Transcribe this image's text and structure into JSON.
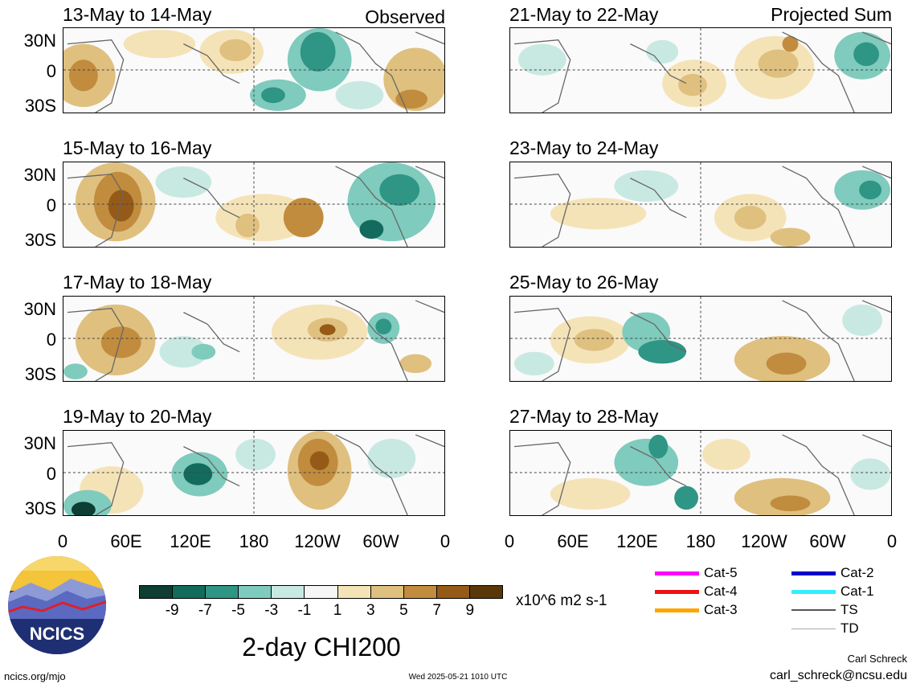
{
  "panels": [
    {
      "id": "p1",
      "title": "13-May to 14-May",
      "tag": "Observed"
    },
    {
      "id": "p2",
      "title": "15-May to 16-May",
      "tag": ""
    },
    {
      "id": "p3",
      "title": "17-May to 18-May",
      "tag": ""
    },
    {
      "id": "p4",
      "title": "19-May to 20-May",
      "tag": ""
    },
    {
      "id": "p5",
      "title": "21-May to 22-May",
      "tag": "Projected Sum"
    },
    {
      "id": "p6",
      "title": "23-May to 24-May",
      "tag": ""
    },
    {
      "id": "p7",
      "title": "25-May to 26-May",
      "tag": ""
    },
    {
      "id": "p8",
      "title": "27-May to 28-May",
      "tag": ""
    }
  ],
  "lat_ticks": [
    "30N",
    "0",
    "30S"
  ],
  "lon_ticks": [
    "0",
    "60E",
    "120E",
    "180",
    "120W",
    "60W",
    "0"
  ],
  "colorbar": {
    "ticks": [
      "-9",
      "-7",
      "-5",
      "-3",
      "-1",
      "1",
      "3",
      "5",
      "7",
      "9"
    ],
    "colors": [
      "#0d3d33",
      "#136b5d",
      "#2f9585",
      "#7fcbbd",
      "#c8e9e2",
      "#f5f5f5",
      "#f5e3b8",
      "#dfc07f",
      "#c18c3e",
      "#955a17",
      "#5a3708"
    ],
    "units": "x10^6 m2 s-1"
  },
  "legend": [
    {
      "label": "Cat-5",
      "color": "#ff00ff"
    },
    {
      "label": "Cat-4",
      "color": "#ee1111"
    },
    {
      "label": "Cat-3",
      "color": "#ffa500"
    },
    {
      "label": "Cat-2",
      "color": "#0000cc"
    },
    {
      "label": "Cat-1",
      "color": "#33eeff"
    },
    {
      "label": "TS",
      "color": "#555555"
    },
    {
      "label": "TD",
      "color": "#aaaaaa"
    }
  ],
  "main_title": "2-day CHI200",
  "logo_text": "NCICS",
  "footer": {
    "left": "ncics.org/mjo",
    "center": "Wed 2025-05-21 1010 UTC",
    "author": "Carl Schreck",
    "email": "carl_schreck@ncsu.edu"
  }
}
